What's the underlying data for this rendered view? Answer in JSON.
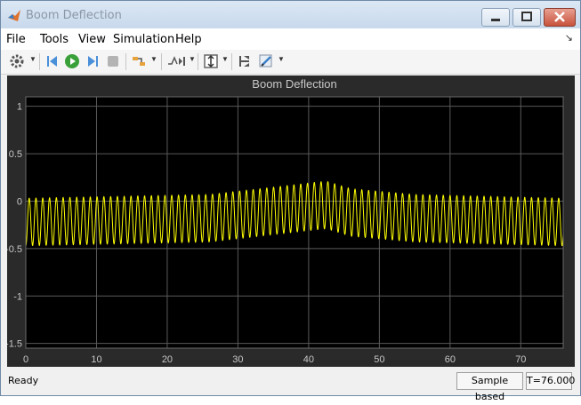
{
  "window": {
    "title": "Boom Deflection"
  },
  "menu": {
    "items": [
      "File",
      "Tools",
      "View",
      "Simulation",
      "Help"
    ]
  },
  "toolbar": {
    "buttons": [
      {
        "icon": "gear-icon"
      },
      {
        "icon": "step-back-icon"
      },
      {
        "icon": "run-icon"
      },
      {
        "icon": "step-forward-icon"
      },
      {
        "icon": "stop-icon"
      },
      {
        "icon": "signal-highlight-icon"
      },
      {
        "icon": "trigger-icon"
      },
      {
        "icon": "autoscale-icon"
      },
      {
        "icon": "cursor-measurement-icon"
      },
      {
        "icon": "style-icon"
      }
    ]
  },
  "status": {
    "ready": "Ready",
    "sample": "Sample based",
    "time": "T=76.000"
  },
  "colors": {
    "signal": "#ffff00",
    "axes_bg": "#000000",
    "panel_bg": "#2a2a2a",
    "grid": "#5a5a5a",
    "text": "#c8c8c8"
  },
  "chart_data": {
    "type": "line",
    "title": "Boom Deflection",
    "xlabel": "",
    "ylabel": "",
    "xlim": [
      0,
      76
    ],
    "ylim": [
      -1.55,
      1.1
    ],
    "xticks": [
      0,
      10,
      20,
      30,
      40,
      50,
      60,
      70
    ],
    "yticks": [
      1,
      0.5,
      0,
      -0.5,
      -1,
      -1.5
    ],
    "ytick_labels": [
      "1",
      "0.5",
      "0",
      "-0.5",
      "-1",
      "-1.5"
    ],
    "grid": true,
    "series": [
      {
        "color": "#ffff00",
        "oscillation_period": 0.96,
        "amplitude": 0.25,
        "baseline": [
          [
            0,
            -0.22
          ],
          [
            26,
            -0.18
          ],
          [
            40,
            -0.06
          ],
          [
            42.5,
            -0.04
          ],
          [
            46,
            -0.12
          ],
          [
            55,
            -0.18
          ],
          [
            76,
            -0.22
          ]
        ]
      }
    ]
  }
}
